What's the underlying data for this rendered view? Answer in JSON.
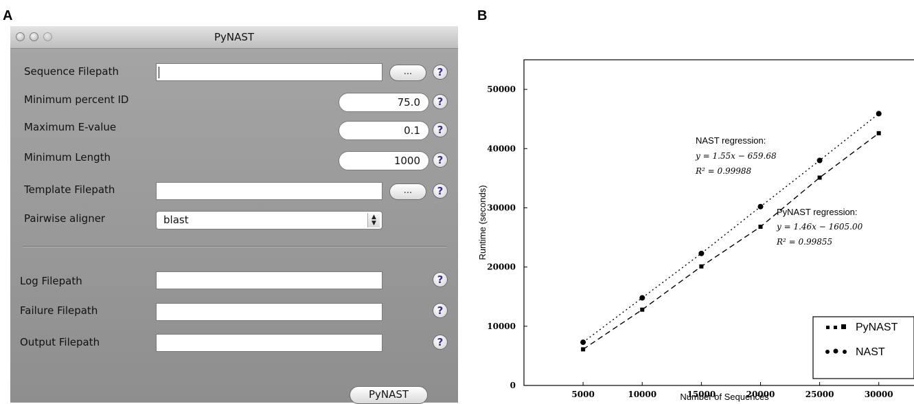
{
  "panels": {
    "a": "A",
    "b": "B"
  },
  "window": {
    "title": "PyNAST"
  },
  "form": {
    "sequence_filepath": {
      "label": "Sequence Filepath",
      "value": "",
      "browse": "..."
    },
    "min_percent_id": {
      "label": "Minimum percent ID",
      "value": "75.0"
    },
    "max_evalue": {
      "label": "Maximum E-value",
      "value": "0.1"
    },
    "min_length": {
      "label": "Minimum Length",
      "value": "1000"
    },
    "template_filepath": {
      "label": "Template Filepath",
      "value": "",
      "browse": "..."
    },
    "pairwise_aligner": {
      "label": "Pairwise aligner",
      "value": "blast"
    },
    "log_filepath": {
      "label": "Log Filepath",
      "value": ""
    },
    "failure_filepath": {
      "label": "Failure Filepath",
      "value": ""
    },
    "output_filepath": {
      "label": "Output Filepath",
      "value": ""
    },
    "help": "?",
    "run_label": "PyNAST"
  },
  "chart_data": {
    "type": "scatter",
    "xlabel": "Number of Sequences",
    "ylabel": "Runtime (seconds)",
    "xlim": [
      0,
      33500
    ],
    "ylim": [
      0,
      55000
    ],
    "xticks": [
      5000,
      10000,
      15000,
      20000,
      25000,
      30000
    ],
    "yticks": [
      0,
      10000,
      20000,
      30000,
      40000,
      50000
    ],
    "x": [
      5000,
      10000,
      15000,
      20000,
      25000,
      30000
    ],
    "series": [
      {
        "name": "PyNAST",
        "marker": "square",
        "line": "dashed",
        "values": [
          6100,
          12800,
          20100,
          26800,
          35100,
          42600
        ]
      },
      {
        "name": "NAST",
        "marker": "circle",
        "line": "dotted",
        "values": [
          7300,
          14800,
          22300,
          30200,
          38000,
          45900
        ]
      }
    ],
    "annotations": {
      "nast": {
        "title": "NAST regression:",
        "equation": "y = 1.55x − 659.68",
        "r2": "R² = 0.99988"
      },
      "pynast": {
        "title": "PyNAST regression:",
        "equation": "y = 1.46x − 1605.00",
        "r2": "R² = 0.99855"
      }
    },
    "legend_position": "bottom-right",
    "grid": false
  }
}
